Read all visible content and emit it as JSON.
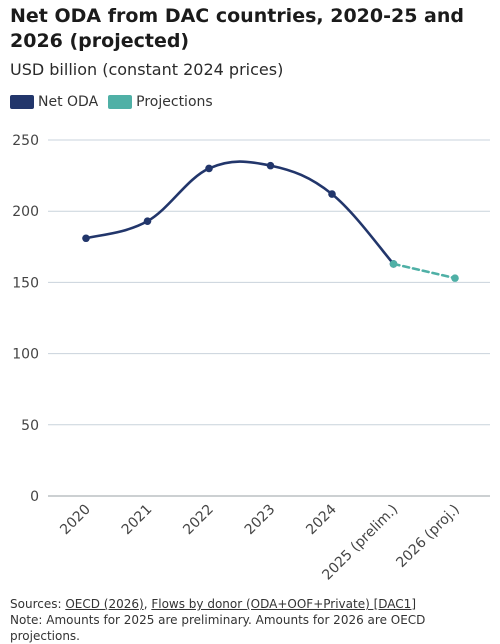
{
  "chart_data": {
    "type": "line",
    "title": "Net ODA from DAC countries, 2020-25 and 2026 (projected)",
    "subtitle": "USD billion (constant 2024 prices)",
    "categories": [
      "2020",
      "2021",
      "2022",
      "2023",
      "2024",
      "2025 (prelim.)",
      "2026 (proj.)"
    ],
    "series": [
      {
        "name": "Net ODA",
        "color": "#22366b",
        "values": [
          181,
          193,
          230,
          232,
          212,
          163,
          null
        ]
      },
      {
        "name": "Projections",
        "color": "#4fb0a6",
        "values": [
          null,
          null,
          null,
          null,
          null,
          163,
          153
        ]
      }
    ],
    "ylim": [
      0,
      250
    ],
    "yticks": [
      0,
      50,
      100,
      150,
      200,
      250
    ],
    "xlabel": "",
    "ylabel": "",
    "legend": "top-left",
    "grid": "horizontal"
  },
  "footer": {
    "sources_prefix": "Sources: ",
    "source1": "OECD (2026)",
    "separator": ", ",
    "source2": "Flows by donor (ODA+OOF+Private) [DAC1]",
    "note": "Note: Amounts for 2025 are preliminary. Amounts for 2026 are OECD projections."
  }
}
